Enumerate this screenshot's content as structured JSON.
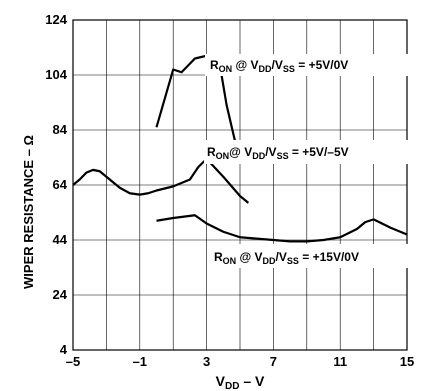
{
  "chart_data": {
    "type": "line",
    "title": "",
    "xlabel": {
      "main": "V",
      "sub": "DD",
      "suffix": " – V"
    },
    "ylabel": "WIPER RESISTANCE – Ω",
    "xlim": [
      -5,
      15
    ],
    "ylim": [
      4,
      124
    ],
    "x_ticks": [
      -5,
      -3,
      -1,
      1,
      3,
      5,
      7,
      9,
      11,
      13,
      15
    ],
    "x_tick_labels": [
      "–5",
      "",
      "–1",
      "",
      "3",
      "",
      "7",
      "",
      "11",
      "",
      "15"
    ],
    "y_ticks": [
      4,
      24,
      44,
      64,
      84,
      104,
      124
    ],
    "y_tick_labels": [
      "4",
      "24",
      "44",
      "64",
      "84",
      "104",
      "124"
    ],
    "grid": true,
    "series": [
      {
        "name": "R_ON @ V_DD/V_SS = +5V/0V",
        "x": [
          0.0,
          1.0,
          1.5,
          2.3,
          3.0,
          3.7,
          4.2,
          4.7
        ],
        "y": [
          85,
          106,
          105,
          110,
          111,
          111,
          93,
          80
        ]
      },
      {
        "name": "R_ON @ V_DD/V_SS = +5V/–5V",
        "x": [
          -5,
          -4.6,
          -4.2,
          -3.8,
          -3.4,
          -2.8,
          -2.2,
          -1.6,
          -1.0,
          -0.5,
          0.0,
          1.0,
          2.0,
          2.5,
          3.0,
          4.0,
          5.0,
          5.5
        ],
        "y": [
          64,
          66,
          68.5,
          69.5,
          69,
          66,
          63,
          61,
          60.5,
          61,
          62,
          63.5,
          66,
          70.5,
          73.5,
          67,
          60,
          57.5
        ]
      },
      {
        "name": "R_ON @ V_DD/V_SS = +15V/0V",
        "x": [
          0.0,
          1.0,
          2.3,
          3.0,
          4.0,
          5.0,
          6.0,
          7.0,
          8.0,
          9.0,
          10.0,
          11.0,
          12.0,
          12.5,
          13.0,
          14.0,
          15.0
        ],
        "y": [
          51,
          52,
          53,
          50,
          47,
          45,
          44.5,
          44,
          43.5,
          43.5,
          44,
          45,
          48,
          50.5,
          51.5,
          48.5,
          46
        ]
      }
    ],
    "annotations": [
      {
        "series": 0,
        "text": {
          "r": "R",
          "rsub": "ON",
          "at": " @ V",
          "vdd": "DD",
          "slash": "/V",
          "vss": "SS",
          "rest": " = +5V/0V"
        }
      },
      {
        "series": 1,
        "text": {
          "r": "R",
          "rsub": "ON",
          "at": "@ V",
          "vdd": "DD",
          "slash": "/V",
          "vss": "SS",
          "rest": " = +5V/–5V"
        }
      },
      {
        "series": 2,
        "text": {
          "r": "R",
          "rsub": "ON",
          "at": " @ V",
          "vdd": "DD",
          "slash": "/V",
          "vss": "SS",
          "rest": " = +15V/0V"
        }
      }
    ]
  }
}
